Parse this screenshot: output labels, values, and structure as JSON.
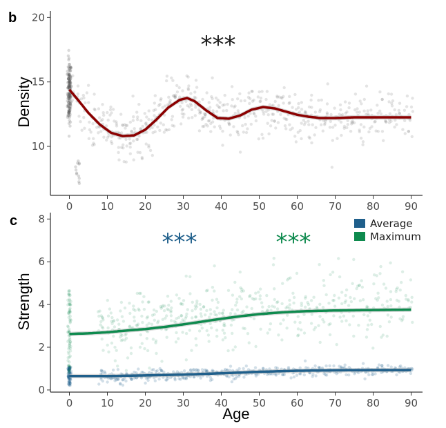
{
  "chart_data": [
    {
      "panel": "b",
      "type": "scatter",
      "xlabel": "",
      "ylabel": "Density",
      "xlim": [
        -5,
        93
      ],
      "ylim": [
        6.2,
        20.5
      ],
      "xticks": [
        0,
        10,
        20,
        30,
        40,
        50,
        60,
        70,
        80,
        90
      ],
      "yticks": [
        10,
        15,
        20
      ],
      "significance": "***",
      "significance_color": "#1a1a1a",
      "point_color": "#555555",
      "series": [
        {
          "color": "#8b0000",
          "trend_x": [
            0,
            2,
            5,
            8,
            11,
            14,
            17,
            20,
            23,
            26,
            29,
            31,
            33,
            36,
            39,
            42,
            45,
            48,
            51,
            54,
            57,
            60,
            63,
            66,
            70,
            75,
            80,
            85,
            90
          ],
          "trend_y": [
            14.4,
            13.7,
            12.6,
            11.7,
            11.05,
            10.8,
            10.85,
            11.3,
            12.1,
            13.0,
            13.6,
            13.75,
            13.5,
            12.8,
            12.2,
            12.15,
            12.4,
            12.85,
            13.05,
            12.95,
            12.7,
            12.45,
            12.3,
            12.2,
            12.2,
            12.25,
            12.25,
            12.25,
            12.25
          ]
        }
      ]
    },
    {
      "panel": "c",
      "type": "scatter",
      "xlabel": "Age",
      "ylabel": "Strength",
      "xlim": [
        -5,
        93
      ],
      "ylim": [
        -0.1,
        8.3
      ],
      "xticks": [
        0,
        10,
        20,
        30,
        40,
        50,
        60,
        70,
        80,
        90
      ],
      "yticks": [
        0,
        2,
        4,
        6,
        8
      ],
      "legend_position": "top-right",
      "significance": [
        {
          "text": "***",
          "color": "#1f5f8b",
          "x": 30
        },
        {
          "text": "***",
          "color": "#0e8a4e",
          "x": 60
        }
      ],
      "series": [
        {
          "name": "Average",
          "color": "#1f5f8b",
          "trend_x": [
            0,
            10,
            20,
            30,
            40,
            50,
            60,
            70,
            80,
            90
          ],
          "trend_y": [
            0.65,
            0.65,
            0.68,
            0.72,
            0.78,
            0.85,
            0.9,
            0.92,
            0.93,
            0.93
          ]
        },
        {
          "name": "Maximum",
          "color": "#0e8a4e",
          "trend_x": [
            0,
            5,
            10,
            15,
            20,
            25,
            30,
            35,
            40,
            45,
            50,
            55,
            60,
            65,
            70,
            75,
            80,
            85,
            90
          ],
          "trend_y": [
            2.62,
            2.65,
            2.7,
            2.78,
            2.85,
            2.95,
            3.07,
            3.2,
            3.33,
            3.45,
            3.55,
            3.62,
            3.67,
            3.7,
            3.72,
            3.73,
            3.74,
            3.75,
            3.76
          ]
        }
      ]
    }
  ]
}
